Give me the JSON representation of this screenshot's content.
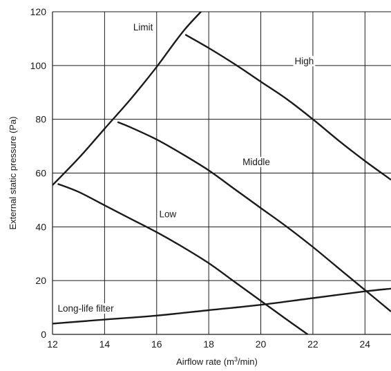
{
  "chart_data": {
    "type": "line",
    "title": "",
    "xlabel": "Airflow rate (m",
    "xlabel_sup": "3",
    "xlabel_suffix": "/min)",
    "ylabel": "External static pressure (Pa)",
    "xlim": [
      12,
      25
    ],
    "ylim": [
      0,
      120
    ],
    "xticks": [
      12,
      14,
      16,
      18,
      20,
      22,
      24
    ],
    "yticks": [
      0,
      20,
      40,
      60,
      80,
      100,
      120
    ],
    "grid": true,
    "series": [
      {
        "name": "Limit",
        "x": [
          12.0,
          13.0,
          14.0,
          15.0,
          16.0,
          17.0,
          17.8
        ],
        "y": [
          55.5,
          65.5,
          76.5,
          87.5,
          99.5,
          112.5,
          121.0
        ]
      },
      {
        "name": "High",
        "x": [
          17.1,
          18.0,
          19.0,
          20.0,
          21.0,
          22.0,
          23.0,
          24.0,
          25.0
        ],
        "y": [
          111.5,
          106.5,
          100.5,
          94.0,
          87.5,
          80.0,
          72.0,
          64.5,
          57.5
        ]
      },
      {
        "name": "Middle",
        "x": [
          14.5,
          15.0,
          16.0,
          17.0,
          18.0,
          19.0,
          20.0,
          21.0,
          22.0,
          23.0,
          24.0,
          25.0
        ],
        "y": [
          79.0,
          77.0,
          72.5,
          67.0,
          61.0,
          54.0,
          47.0,
          40.0,
          32.5,
          24.5,
          16.5,
          8.5
        ]
      },
      {
        "name": "Low",
        "x": [
          12.2,
          13.0,
          14.0,
          15.0,
          16.0,
          17.0,
          18.0,
          19.0,
          20.0,
          21.0,
          21.8
        ],
        "y": [
          56.0,
          53.0,
          48.0,
          43.0,
          38.0,
          32.5,
          26.5,
          19.5,
          12.5,
          5.5,
          0.0
        ]
      },
      {
        "name": "Long-life filter",
        "x": [
          12.0,
          14.0,
          16.0,
          18.0,
          20.0,
          22.0,
          24.0,
          25.0
        ],
        "y": [
          4.0,
          5.5,
          7.0,
          9.0,
          11.0,
          13.5,
          16.0,
          17.0
        ]
      }
    ],
    "annotations": [
      {
        "text": "Limit",
        "x": 15.1,
        "y": 113.0
      },
      {
        "text": "High",
        "x": 21.3,
        "y": 100.5
      },
      {
        "text": "Middle",
        "x": 19.3,
        "y": 63.0
      },
      {
        "text": "Low",
        "x": 16.1,
        "y": 43.5
      },
      {
        "text": "Long-life filter",
        "x": 12.2,
        "y": 8.5
      }
    ],
    "colors": {
      "line": "#1a1a1a",
      "grid": "#1a1a1a",
      "text": "#1a1a1a"
    }
  }
}
